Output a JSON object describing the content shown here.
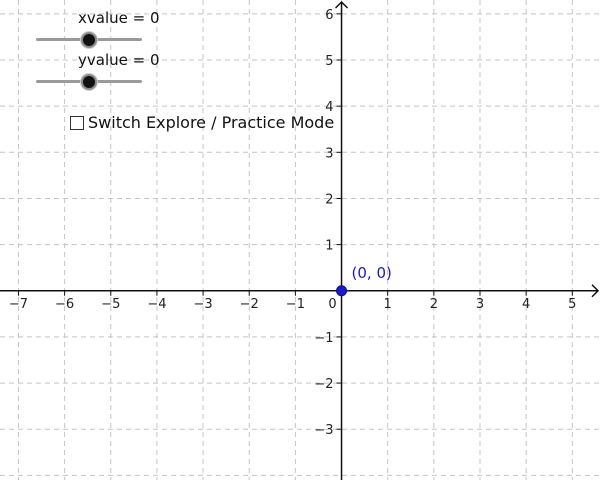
{
  "sliders": {
    "x": {
      "label": "xvalue = 0",
      "value": 0,
      "min": -5,
      "max": 5
    },
    "y": {
      "label": "yvalue = 0",
      "value": 0,
      "min": -5,
      "max": 5
    }
  },
  "mode_checkbox": {
    "label": "Switch Explore / Practice Mode",
    "checked": false
  },
  "graph": {
    "x_ticks": [
      "−7",
      "−6",
      "−5",
      "−4",
      "−3",
      "−2",
      "−1",
      "0",
      "1",
      "2",
      "3",
      "4",
      "5"
    ],
    "y_ticks_positive": [
      "1",
      "2",
      "3",
      "4",
      "5",
      "6"
    ],
    "y_ticks_negative": [
      "−1",
      "−2",
      "−3"
    ],
    "x_range": [
      -7.4,
      5.6
    ],
    "y_range": [
      -4.1,
      6.3
    ],
    "grid": true,
    "point": {
      "x": 0,
      "y": 0,
      "label": "(0, 0)",
      "color": "#1a1acc"
    }
  }
}
